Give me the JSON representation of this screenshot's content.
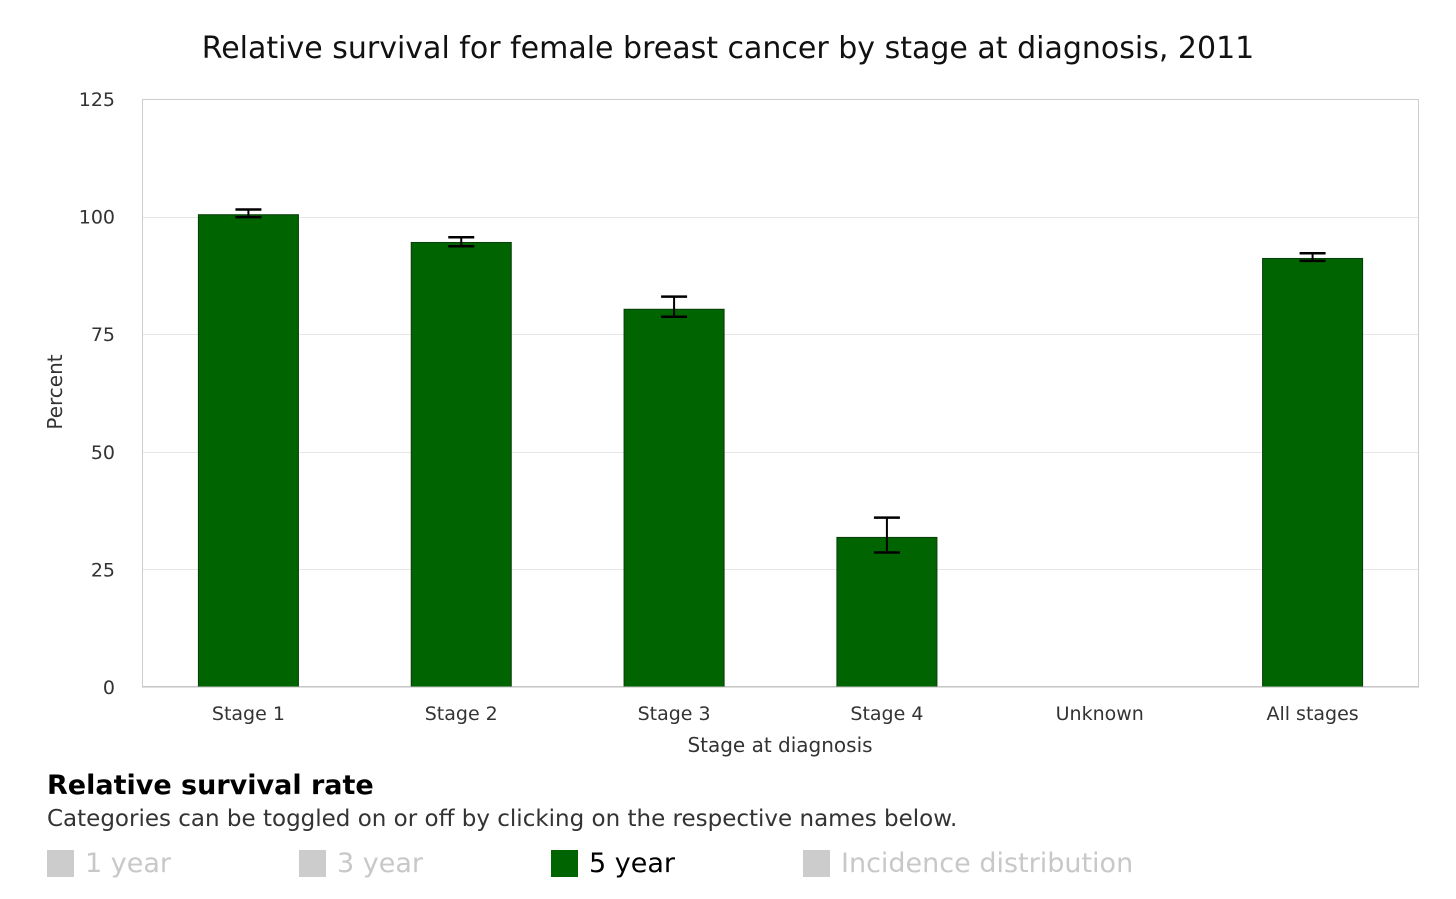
{
  "chart_data": {
    "type": "bar",
    "title": "Relative survival for female breast cancer by stage at diagnosis, 2011",
    "xlabel": "Stage at diagnosis",
    "ylabel": "Percent",
    "ylim": [
      0,
      125
    ],
    "yticks": [
      0,
      25,
      50,
      75,
      100,
      125
    ],
    "grid": true,
    "categories": [
      "Stage 1",
      "Stage 2",
      "Stage 3",
      "Stage 4",
      "Unknown",
      "All stages"
    ],
    "series": [
      {
        "name": "5 year",
        "color": "#006400",
        "values": [
          100.4,
          94.5,
          80.3,
          31.8,
          null,
          91.1
        ],
        "error_low": [
          99.9,
          93.7,
          78.7,
          28.6,
          null,
          90.6
        ],
        "error_high": [
          101.5,
          95.6,
          83.0,
          36.0,
          null,
          92.2
        ]
      }
    ]
  },
  "legend": {
    "title": "Relative survival rate",
    "subtitle": "Categories can be toggled on or off by clicking on the respective names below.",
    "items": [
      {
        "label": "1 year",
        "active": false,
        "color": "#cccccc"
      },
      {
        "label": "3 year",
        "active": false,
        "color": "#cccccc"
      },
      {
        "label": "5 year",
        "active": true,
        "color": "#006400"
      },
      {
        "label": "Incidence distribution",
        "active": false,
        "color": "#cccccc"
      }
    ]
  }
}
